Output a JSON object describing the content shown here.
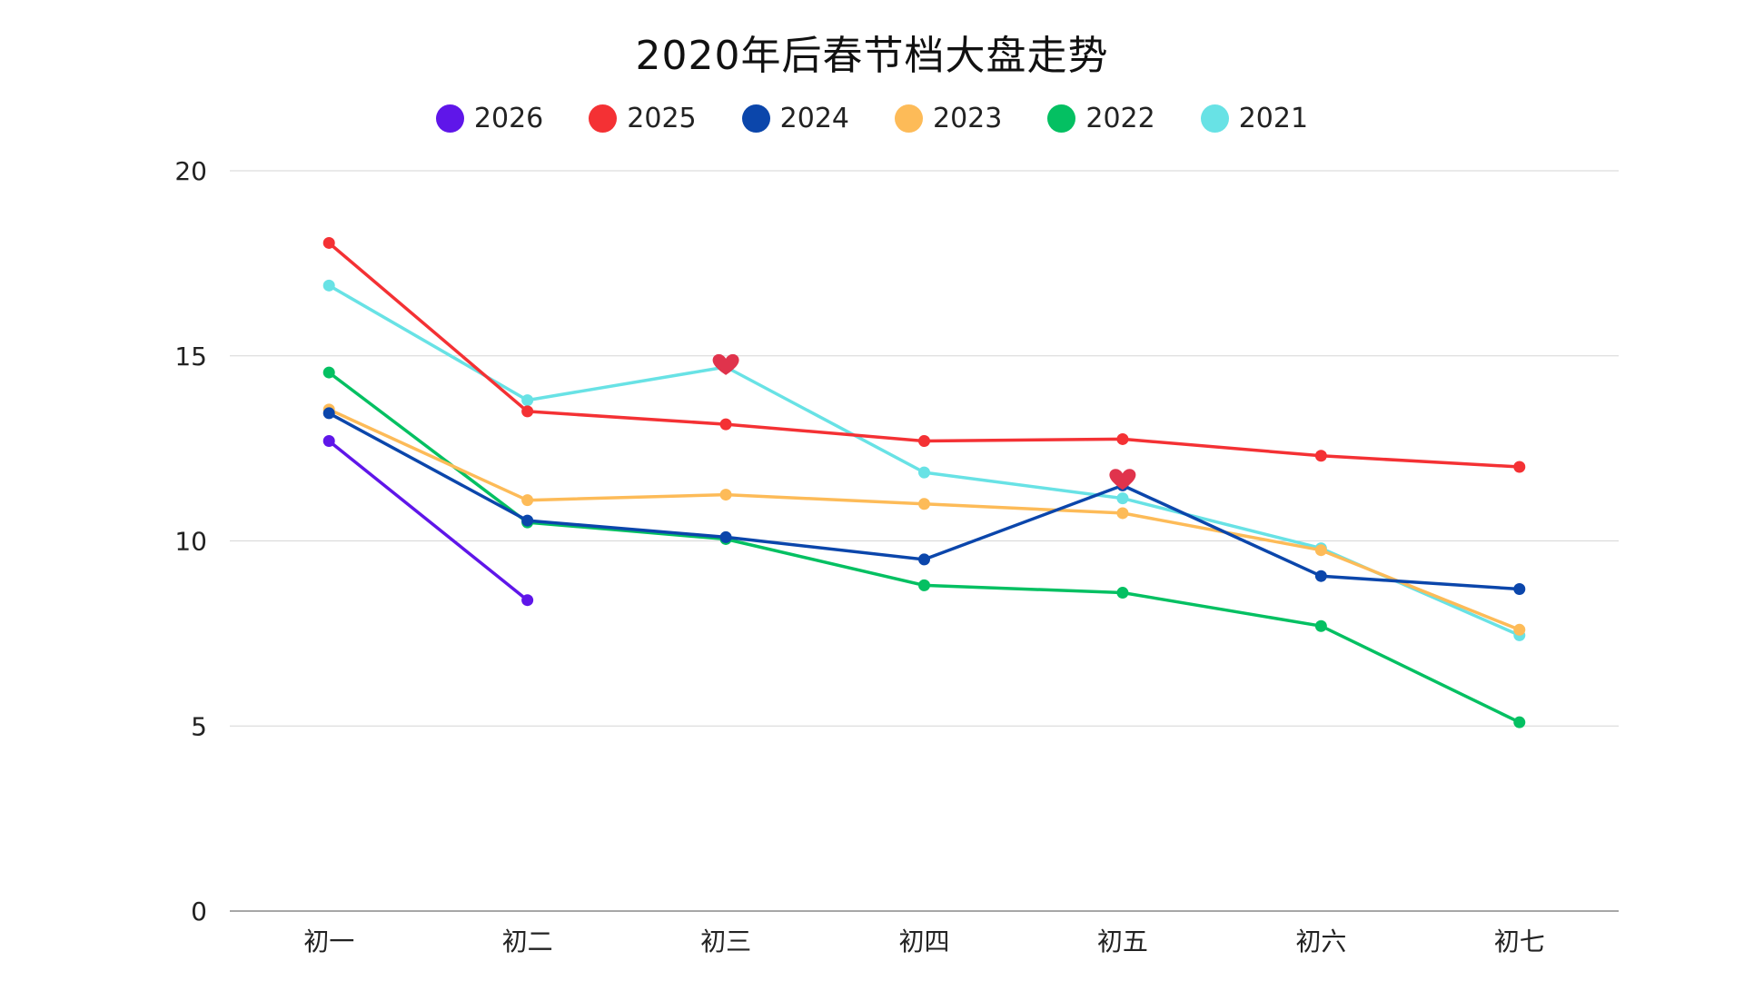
{
  "chart_data": {
    "type": "line",
    "title": "2020年后春节档大盘走势",
    "xlabel": "",
    "ylabel": "",
    "categories": [
      "初一",
      "初二",
      "初三",
      "初四",
      "初五",
      "初六",
      "初七"
    ],
    "ylim": [
      0,
      20
    ],
    "yticks": [
      0,
      5,
      10,
      15,
      20
    ],
    "grid": "horizontal",
    "legend_position": "top",
    "series": [
      {
        "name": "2026",
        "color": "#5f16e9",
        "values": [
          12.7,
          8.4,
          null,
          null,
          null,
          null,
          null
        ]
      },
      {
        "name": "2025",
        "color": "#f43134",
        "values": [
          18.05,
          13.5,
          13.15,
          12.7,
          12.75,
          12.3,
          12.0
        ]
      },
      {
        "name": "2024",
        "color": "#0b46ab",
        "values": [
          13.45,
          10.55,
          10.1,
          9.5,
          11.5,
          9.05,
          8.7
        ]
      },
      {
        "name": "2023",
        "color": "#fdbb58",
        "values": [
          13.55,
          11.1,
          11.25,
          11.0,
          10.75,
          9.75,
          7.6
        ]
      },
      {
        "name": "2022",
        "color": "#04c062",
        "values": [
          14.55,
          10.5,
          10.05,
          8.8,
          8.6,
          7.7,
          5.1
        ]
      },
      {
        "name": "2021",
        "color": "#68e2e5",
        "values": [
          16.9,
          13.8,
          14.7,
          11.85,
          11.15,
          9.8,
          7.45
        ]
      }
    ],
    "annotations": [
      {
        "marker": "heart-icon",
        "color": "#e0334c",
        "category": "初三",
        "value": 14.75
      },
      {
        "marker": "heart-icon",
        "color": "#e0334c",
        "category": "初五",
        "value": 11.65
      }
    ]
  }
}
